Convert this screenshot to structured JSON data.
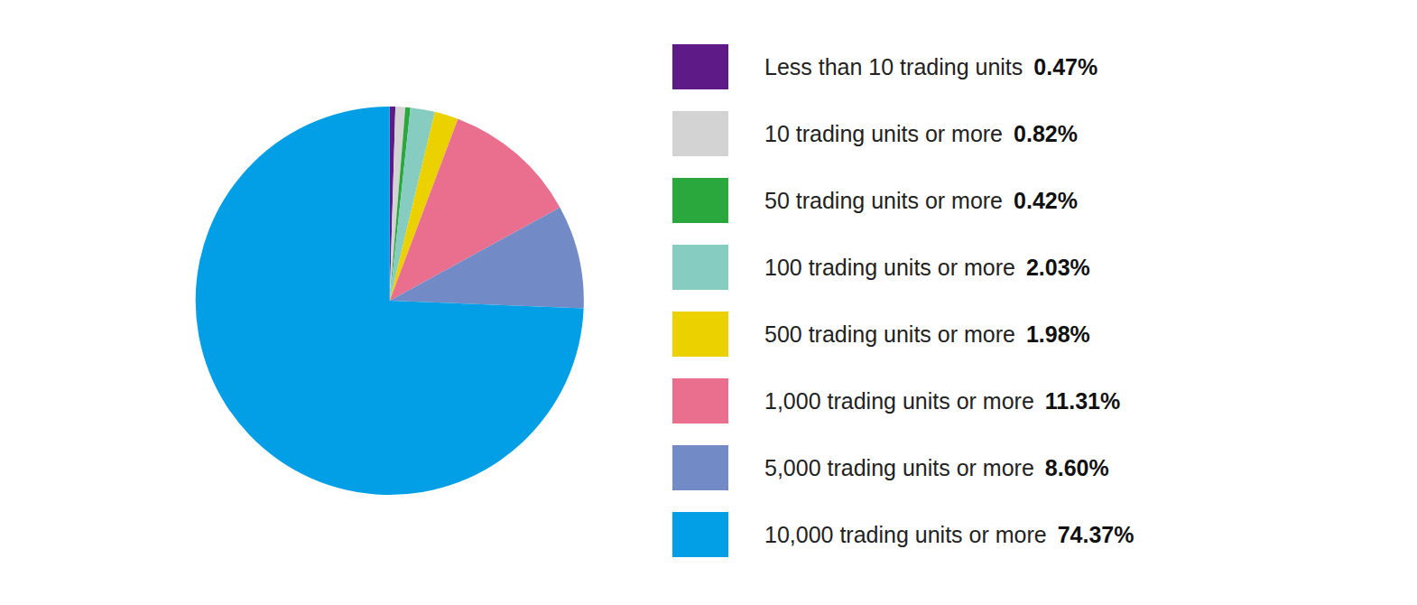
{
  "chart_data": {
    "type": "pie",
    "categories": [
      "Less than 10 trading units",
      "10 trading units or more",
      "50 trading units or more",
      "100 trading units or more",
      "500 trading units or more",
      "1,000 trading units or more",
      "5,000 trading units or more",
      "10,000 trading units or more"
    ],
    "values": [
      0.47,
      0.82,
      0.42,
      2.03,
      1.98,
      11.31,
      8.6,
      74.37
    ],
    "value_labels": [
      "0.47%",
      "0.82%",
      "0.42%",
      "2.03%",
      "1.98%",
      "11.31%",
      "8.60%",
      "74.37%"
    ],
    "colors": [
      "#5e1a87",
      "#d3d3d3",
      "#2aa83e",
      "#86ccc0",
      "#ecd100",
      "#ea6e8d",
      "#728bc6",
      "#039fe6"
    ],
    "legend": "right",
    "data_labels": false
  }
}
